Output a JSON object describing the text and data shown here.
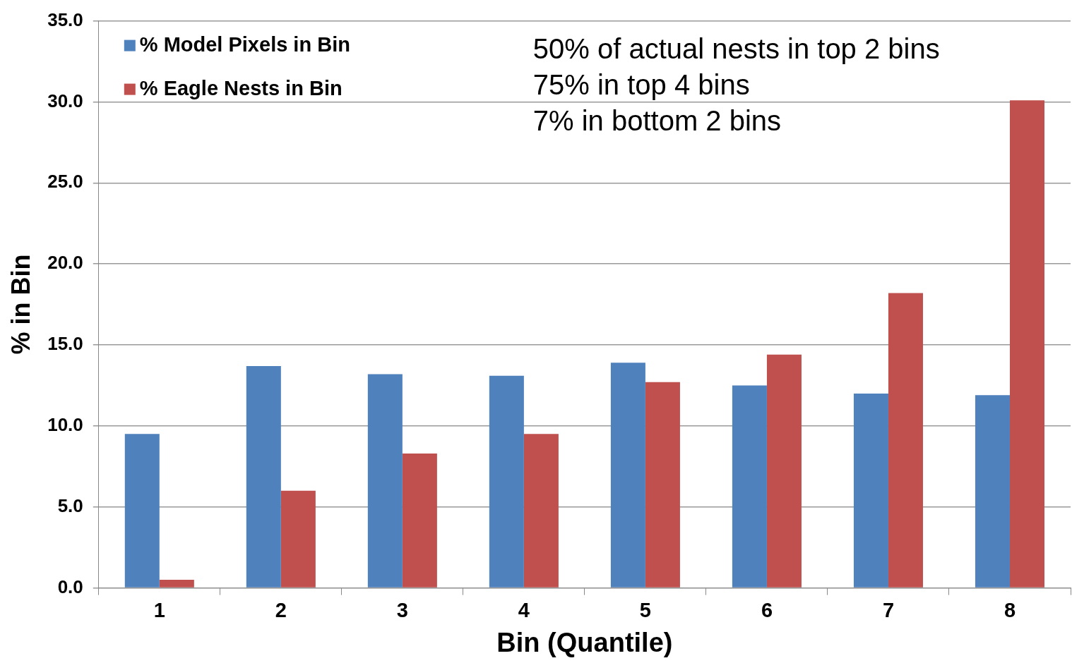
{
  "chart_data": {
    "type": "bar",
    "xlabel": "Bin (Quantile)",
    "ylabel": "% in Bin",
    "categories": [
      "1",
      "2",
      "3",
      "4",
      "5",
      "6",
      "7",
      "8"
    ],
    "series": [
      {
        "name": "% Model Pixels in Bin",
        "color": "#4f81bd",
        "values": [
          9.5,
          13.7,
          13.2,
          13.1,
          13.9,
          12.5,
          12.0,
          11.9
        ]
      },
      {
        "name": "% Eagle Nests in Bin",
        "color": "#c0504d",
        "values": [
          0.5,
          6.0,
          8.3,
          9.5,
          12.7,
          14.4,
          18.2,
          30.1
        ]
      }
    ],
    "ylim": [
      0,
      35
    ],
    "yticks": [
      {
        "value": 0,
        "label": "0.0"
      },
      {
        "value": 5,
        "label": "5.0"
      },
      {
        "value": 10,
        "label": "10.0"
      },
      {
        "value": 15,
        "label": "15.0"
      },
      {
        "value": 20,
        "label": "20.0"
      },
      {
        "value": 25,
        "label": "25.0"
      },
      {
        "value": 30,
        "label": "30.0"
      },
      {
        "value": 35,
        "label": "35.0"
      }
    ],
    "grid": "y",
    "legend": "top left",
    "annotations": [
      "50% of actual nests in top 2 bins",
      "75% in top 4 bins",
      "7% in bottom 2 bins"
    ]
  }
}
